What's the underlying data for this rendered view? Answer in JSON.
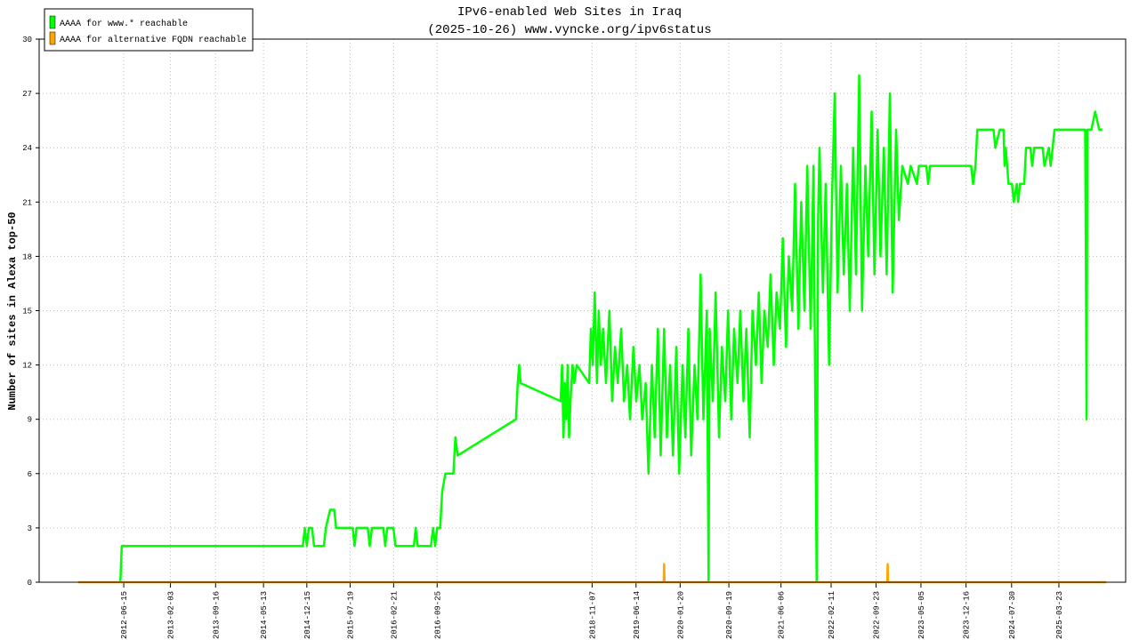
{
  "chart_data": {
    "type": "line",
    "title": "IPv6-enabled Web Sites in Iraq",
    "subtitle": "(2025-10-26) www.vyncke.org/ipv6status",
    "y_label": "Number of sites in Alexa top-50",
    "grid": true,
    "legend": "upper-left",
    "xlim": [
      "2011-04-20",
      "2026-02-19"
    ],
    "xticks": [
      "2012-06-15",
      "2013-02-03",
      "2013-09-16",
      "2014-05-13",
      "2014-12-15",
      "2015-07-19",
      "2016-02-21",
      "2016-09-25",
      "2018-11-07",
      "2019-06-14",
      "2020-01-20",
      "2020-09-19",
      "2021-06-06",
      "2022-02-11",
      "2022-09-23",
      "2023-05-05",
      "2023-12-16",
      "2024-07-30",
      "2025-03-23"
    ],
    "ylim": [
      0,
      30
    ],
    "yticks": [
      0,
      3,
      6,
      9,
      12,
      15,
      18,
      21,
      24,
      27,
      30
    ],
    "series": [
      {
        "name": "AAAA for www.* reachable",
        "color": "#00ff00",
        "x": [
          "2012-05-29",
          "2012-06-05",
          "2014-11-25",
          "2014-12-05",
          "2014-12-15",
          "2014-12-25",
          "2015-01-10",
          "2015-01-20",
          "2015-03-10",
          "2015-03-20",
          "2015-04-10",
          "2015-05-01",
          "2015-05-10",
          "2015-08-01",
          "2015-08-10",
          "2015-08-20",
          "2015-10-15",
          "2015-10-25",
          "2015-11-05",
          "2016-01-01",
          "2016-01-10",
          "2016-01-20",
          "2016-02-20",
          "2016-03-01",
          "2016-06-01",
          "2016-06-10",
          "2016-06-20",
          "2016-08-25",
          "2016-09-05",
          "2016-09-15",
          "2016-09-25",
          "2016-10-10",
          "2016-10-20",
          "2016-11-05",
          "2016-12-15",
          "2016-12-25",
          "2017-01-05",
          "2017-10-23",
          "2017-11-01",
          "2017-11-08",
          "2017-11-15",
          "2018-06-03",
          "2018-06-10",
          "2018-06-17",
          "2018-06-24",
          "2018-07-01",
          "2018-07-08",
          "2018-07-15",
          "2018-07-22",
          "2018-08-01",
          "2018-08-10",
          "2018-08-22",
          "2018-10-23",
          "2018-11-01",
          "2018-11-10",
          "2018-11-20",
          "2018-12-01",
          "2018-12-10",
          "2018-12-20",
          "2019-01-01",
          "2019-01-15",
          "2019-02-01",
          "2019-02-15",
          "2019-03-01",
          "2019-03-15",
          "2019-04-01",
          "2019-04-15",
          "2019-05-01",
          "2019-05-15",
          "2019-06-01",
          "2019-06-15",
          "2019-07-01",
          "2019-07-15",
          "2019-08-01",
          "2019-08-15",
          "2019-09-01",
          "2019-09-15",
          "2019-10-01",
          "2019-10-15",
          "2019-11-01",
          "2019-11-15",
          "2019-12-01",
          "2019-12-15",
          "2020-01-01",
          "2020-01-15",
          "2020-02-01",
          "2020-02-15",
          "2020-03-01",
          "2020-03-15",
          "2020-04-01",
          "2020-04-15",
          "2020-05-01",
          "2020-05-15",
          "2020-06-01",
          "2020-06-10",
          "2020-06-15",
          "2020-07-01",
          "2020-07-15",
          "2020-08-01",
          "2020-08-15",
          "2020-09-01",
          "2020-09-15",
          "2020-10-01",
          "2020-10-15",
          "2020-11-01",
          "2020-11-15",
          "2020-12-01",
          "2020-12-15",
          "2021-01-01",
          "2021-01-15",
          "2021-02-01",
          "2021-02-15",
          "2021-03-01",
          "2021-03-15",
          "2021-04-01",
          "2021-04-15",
          "2021-05-01",
          "2021-05-15",
          "2021-06-01",
          "2021-06-15",
          "2021-07-01",
          "2021-07-15",
          "2021-08-01",
          "2021-08-15",
          "2021-09-01",
          "2021-09-15",
          "2021-10-01",
          "2021-10-15",
          "2021-11-01",
          "2021-11-15",
          "2021-12-01",
          "2021-12-08",
          "2021-12-15",
          "2022-01-01",
          "2022-01-15",
          "2022-02-01",
          "2022-02-15",
          "2022-03-01",
          "2022-03-15",
          "2022-04-01",
          "2022-04-15",
          "2022-05-01",
          "2022-05-15",
          "2022-06-01",
          "2022-06-15",
          "2022-07-01",
          "2022-07-15",
          "2022-08-01",
          "2022-08-15",
          "2022-09-01",
          "2022-09-15",
          "2022-10-01",
          "2022-10-15",
          "2022-11-01",
          "2022-11-15",
          "2022-12-01",
          "2022-12-15",
          "2023-01-01",
          "2023-01-15",
          "2023-02-01",
          "2023-03-01",
          "2023-03-15",
          "2023-04-15",
          "2023-04-25",
          "2023-06-01",
          "2023-06-10",
          "2023-06-20",
          "2024-01-10",
          "2024-01-20",
          "2024-02-01",
          "2024-02-10",
          "2024-05-01",
          "2024-05-10",
          "2024-06-01",
          "2024-06-20",
          "2024-06-25",
          "2024-07-01",
          "2024-07-15",
          "2024-08-01",
          "2024-08-10",
          "2024-08-25",
          "2024-09-01",
          "2024-09-10",
          "2024-10-01",
          "2024-10-10",
          "2024-11-01",
          "2024-11-10",
          "2024-11-20",
          "2025-01-01",
          "2025-01-10",
          "2025-02-01",
          "2025-02-10",
          "2025-02-20",
          "2025-03-01",
          "2025-08-01",
          "2025-08-05",
          "2025-08-08",
          "2025-08-12",
          "2025-09-01",
          "2025-09-20",
          "2025-10-10",
          "2025-10-26"
        ],
        "values": [
          0,
          2,
          2,
          3,
          2,
          3,
          3,
          2,
          2,
          3,
          4,
          4,
          3,
          3,
          2,
          3,
          3,
          2,
          3,
          3,
          2,
          3,
          3,
          2,
          2,
          3,
          2,
          2,
          3,
          2,
          3,
          3,
          5,
          6,
          6,
          8,
          7,
          9,
          11,
          12,
          11,
          10,
          12,
          8,
          11,
          9,
          12,
          8,
          10,
          12,
          11,
          12,
          11,
          14,
          12,
          16,
          11,
          15,
          12,
          14,
          11,
          15,
          10,
          13,
          11,
          14,
          10,
          12,
          9,
          13,
          10,
          12,
          9,
          11,
          6,
          12,
          8,
          14,
          7,
          14,
          8,
          12,
          7,
          13,
          6,
          12,
          8,
          14,
          7,
          12,
          9,
          17,
          9,
          15,
          0,
          14,
          10,
          16,
          8,
          13,
          10,
          15,
          9,
          14,
          11,
          15,
          10,
          14,
          8,
          15,
          12,
          16,
          11,
          15,
          13,
          17,
          12,
          16,
          14,
          19,
          13,
          18,
          15,
          22,
          14,
          21,
          15,
          23,
          14,
          23,
          0,
          20,
          24,
          16,
          22,
          12,
          21,
          27,
          16,
          23,
          17,
          22,
          15,
          24,
          17,
          28,
          15,
          23,
          18,
          26,
          17,
          25,
          18,
          24,
          17,
          27,
          16,
          25,
          20,
          23,
          22,
          23,
          22,
          23,
          23,
          22,
          23,
          23,
          22,
          23,
          25,
          25,
          24,
          25,
          25,
          23,
          24,
          22,
          22,
          21,
          22,
          21,
          22,
          22,
          24,
          24,
          23,
          24,
          24,
          23,
          24,
          23,
          24,
          25,
          25,
          17,
          9,
          25,
          25,
          26,
          25,
          25
        ]
      },
      {
        "name": "AAAA for alternative FQDN reachable",
        "color": "#ffa500",
        "x": [
          "2011-10-31",
          "2019-10-30",
          "2019-11-01",
          "2019-11-03",
          "2022-11-18",
          "2022-11-20",
          "2022-11-22",
          "2025-11-14"
        ],
        "values": [
          0,
          0,
          1,
          0,
          0,
          1,
          0,
          0
        ]
      }
    ]
  }
}
